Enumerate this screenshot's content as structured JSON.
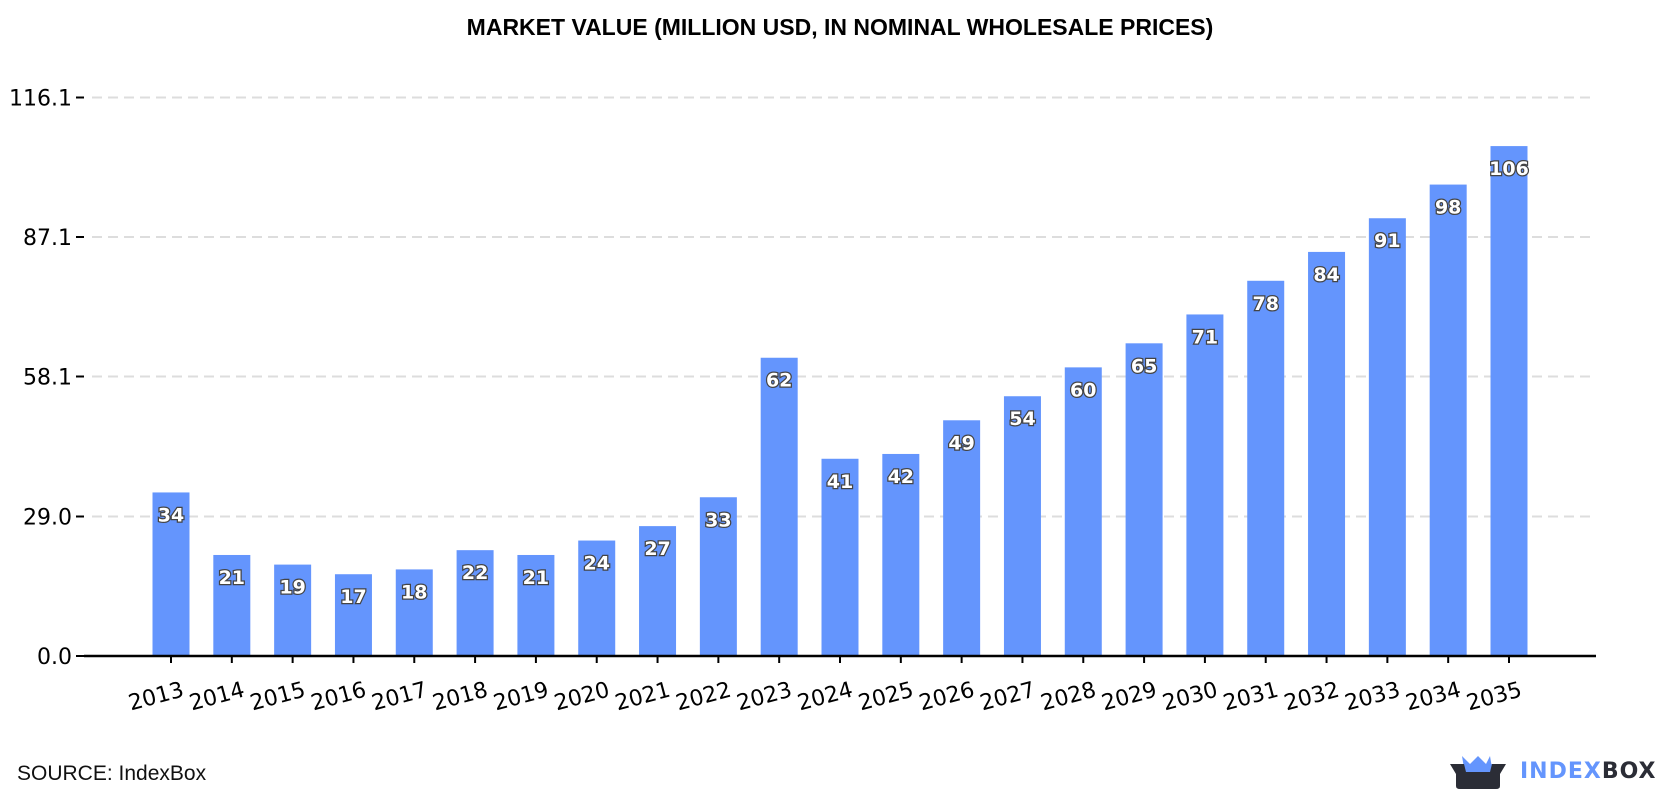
{
  "chart_data": {
    "type": "bar",
    "title": "MARKET VALUE (MILLION USD, IN NOMINAL WHOLESALE PRICES)",
    "categories": [
      "2013",
      "2014",
      "2015",
      "2016",
      "2017",
      "2018",
      "2019",
      "2020",
      "2021",
      "2022",
      "2023",
      "2024",
      "2025",
      "2026",
      "2027",
      "2028",
      "2029",
      "2030",
      "2031",
      "2032",
      "2033",
      "2034",
      "2035"
    ],
    "values": [
      34,
      21,
      19,
      17,
      18,
      22,
      21,
      24,
      27,
      33,
      62,
      41,
      42,
      49,
      54,
      60,
      65,
      71,
      78,
      84,
      91,
      98,
      106
    ],
    "data_labels": [
      "34",
      "21",
      "19",
      "17",
      "18",
      "22",
      "21",
      "24",
      "27",
      "33",
      "62",
      "41",
      "42",
      "49",
      "54",
      "60",
      "65",
      "71",
      "78",
      "84",
      "91",
      "98",
      "106"
    ],
    "yticks": [
      "0.0",
      "29.0",
      "58.1",
      "87.1",
      "116.1"
    ],
    "ytick_values": [
      0,
      29.0,
      58.1,
      87.1,
      116.1
    ],
    "ylim": [
      0,
      116.1
    ],
    "xlabel": "",
    "ylabel": "",
    "grid": "horizontal dashed",
    "bar_color": "#6495fd",
    "grid_color": "#dddddd"
  },
  "source": "SOURCE: IndexBox",
  "logo": {
    "part1": "INDEX",
    "part2": "BOX",
    "color1": "#6495fd",
    "color2": "#2b2d36"
  }
}
